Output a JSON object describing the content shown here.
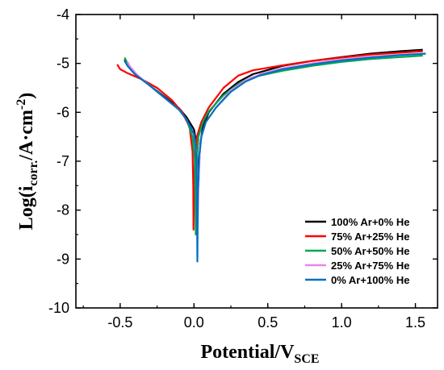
{
  "chart_data": {
    "type": "line",
    "xlabel_main": "Potential/V",
    "xlabel_sub": "SCE",
    "ylabel_main": "Log(i",
    "ylabel_sub": "corr.",
    "ylabel_unit": "/A·cm",
    "ylabel_sup": "-2",
    "ylabel_close": ")",
    "xlim": [
      -0.8,
      1.65
    ],
    "ylim": [
      -10,
      -4
    ],
    "xticks": [
      -0.5,
      0.0,
      0.5,
      1.0,
      1.5
    ],
    "xtick_labels": [
      "-0.5",
      "0.0",
      "0.5",
      "1.0",
      "1.5"
    ],
    "yticks": [
      -10,
      -9,
      -8,
      -7,
      -6,
      -5,
      -4
    ],
    "ytick_labels": [
      "-10",
      "-9",
      "-8",
      "-7",
      "-6",
      "-5",
      "-4"
    ],
    "legend_position": "bottom-right",
    "series": [
      {
        "name": "100% Ar+0% He",
        "color": "#000000",
        "points": [
          [
            -0.47,
            -4.92
          ],
          [
            -0.45,
            -5.05
          ],
          [
            -0.4,
            -5.22
          ],
          [
            -0.3,
            -5.45
          ],
          [
            -0.2,
            -5.68
          ],
          [
            -0.1,
            -5.92
          ],
          [
            -0.05,
            -6.1
          ],
          [
            0.0,
            -6.35
          ],
          [
            0.015,
            -6.6
          ],
          [
            0.025,
            -7.0
          ],
          [
            0.03,
            -7.5
          ],
          [
            0.035,
            -7.0
          ],
          [
            0.045,
            -6.6
          ],
          [
            0.06,
            -6.3
          ],
          [
            0.1,
            -6.0
          ],
          [
            0.2,
            -5.62
          ],
          [
            0.3,
            -5.38
          ],
          [
            0.4,
            -5.22
          ],
          [
            0.6,
            -5.05
          ],
          [
            0.8,
            -4.95
          ],
          [
            1.0,
            -4.87
          ],
          [
            1.2,
            -4.8
          ],
          [
            1.4,
            -4.75
          ],
          [
            1.55,
            -4.72
          ]
        ]
      },
      {
        "name": "75% Ar+25% He",
        "color": "#ff0000",
        "points": [
          [
            -0.52,
            -5.02
          ],
          [
            -0.5,
            -5.12
          ],
          [
            -0.45,
            -5.2
          ],
          [
            -0.35,
            -5.33
          ],
          [
            -0.25,
            -5.5
          ],
          [
            -0.15,
            -5.75
          ],
          [
            -0.08,
            -6.0
          ],
          [
            -0.03,
            -6.3
          ],
          [
            -0.01,
            -6.8
          ],
          [
            -0.005,
            -7.5
          ],
          [
            -0.003,
            -8.4
          ],
          [
            0.0,
            -7.5
          ],
          [
            0.01,
            -6.8
          ],
          [
            0.02,
            -6.5
          ],
          [
            0.05,
            -6.2
          ],
          [
            0.1,
            -5.9
          ],
          [
            0.2,
            -5.5
          ],
          [
            0.3,
            -5.25
          ],
          [
            0.4,
            -5.14
          ],
          [
            0.6,
            -5.04
          ],
          [
            0.8,
            -4.95
          ],
          [
            1.0,
            -4.88
          ],
          [
            1.2,
            -4.82
          ],
          [
            1.4,
            -4.78
          ],
          [
            1.55,
            -4.75
          ]
        ]
      },
      {
        "name": "50% Ar+50% He",
        "color": "#00a651",
        "points": [
          [
            -0.47,
            -4.88
          ],
          [
            -0.45,
            -5.0
          ],
          [
            -0.4,
            -5.2
          ],
          [
            -0.3,
            -5.45
          ],
          [
            -0.2,
            -5.7
          ],
          [
            -0.1,
            -5.95
          ],
          [
            -0.05,
            -6.15
          ],
          [
            -0.01,
            -6.5
          ],
          [
            0.005,
            -7.0
          ],
          [
            0.01,
            -7.8
          ],
          [
            0.012,
            -8.5
          ],
          [
            0.015,
            -7.8
          ],
          [
            0.02,
            -7.0
          ],
          [
            0.03,
            -6.5
          ],
          [
            0.06,
            -6.2
          ],
          [
            0.1,
            -5.98
          ],
          [
            0.2,
            -5.65
          ],
          [
            0.3,
            -5.42
          ],
          [
            0.4,
            -5.28
          ],
          [
            0.6,
            -5.15
          ],
          [
            0.8,
            -5.05
          ],
          [
            1.0,
            -4.97
          ],
          [
            1.2,
            -4.91
          ],
          [
            1.4,
            -4.87
          ],
          [
            1.55,
            -4.84
          ]
        ]
      },
      {
        "name": "25% Ar+75% He",
        "color": "#ee82ee",
        "points": [
          [
            -0.45,
            -4.97
          ],
          [
            -0.43,
            -5.08
          ],
          [
            -0.38,
            -5.25
          ],
          [
            -0.3,
            -5.45
          ],
          [
            -0.2,
            -5.7
          ],
          [
            -0.1,
            -5.95
          ],
          [
            -0.05,
            -6.15
          ],
          [
            0.0,
            -6.45
          ],
          [
            0.015,
            -6.8
          ],
          [
            0.022,
            -7.5
          ],
          [
            0.025,
            -8.3
          ],
          [
            0.03,
            -7.5
          ],
          [
            0.04,
            -6.8
          ],
          [
            0.05,
            -6.5
          ],
          [
            0.08,
            -6.2
          ],
          [
            0.15,
            -5.9
          ],
          [
            0.25,
            -5.55
          ],
          [
            0.35,
            -5.35
          ],
          [
            0.45,
            -5.22
          ],
          [
            0.6,
            -5.1
          ],
          [
            0.8,
            -5.0
          ],
          [
            1.0,
            -4.92
          ],
          [
            1.2,
            -4.86
          ],
          [
            1.4,
            -4.82
          ],
          [
            1.57,
            -4.8
          ]
        ]
      },
      {
        "name": "0% Ar+100% He",
        "color": "#0070c0",
        "points": [
          [
            -0.47,
            -4.95
          ],
          [
            -0.45,
            -5.05
          ],
          [
            -0.4,
            -5.22
          ],
          [
            -0.3,
            -5.45
          ],
          [
            -0.2,
            -5.7
          ],
          [
            -0.1,
            -5.95
          ],
          [
            -0.05,
            -6.15
          ],
          [
            0.0,
            -6.45
          ],
          [
            0.015,
            -6.85
          ],
          [
            0.02,
            -7.6
          ],
          [
            0.023,
            -9.05
          ],
          [
            0.027,
            -7.6
          ],
          [
            0.035,
            -6.9
          ],
          [
            0.05,
            -6.5
          ],
          [
            0.08,
            -6.2
          ],
          [
            0.15,
            -5.9
          ],
          [
            0.25,
            -5.58
          ],
          [
            0.35,
            -5.37
          ],
          [
            0.45,
            -5.24
          ],
          [
            0.6,
            -5.12
          ],
          [
            0.8,
            -5.02
          ],
          [
            1.0,
            -4.94
          ],
          [
            1.2,
            -4.88
          ],
          [
            1.4,
            -4.83
          ],
          [
            1.57,
            -4.8
          ]
        ]
      }
    ]
  }
}
